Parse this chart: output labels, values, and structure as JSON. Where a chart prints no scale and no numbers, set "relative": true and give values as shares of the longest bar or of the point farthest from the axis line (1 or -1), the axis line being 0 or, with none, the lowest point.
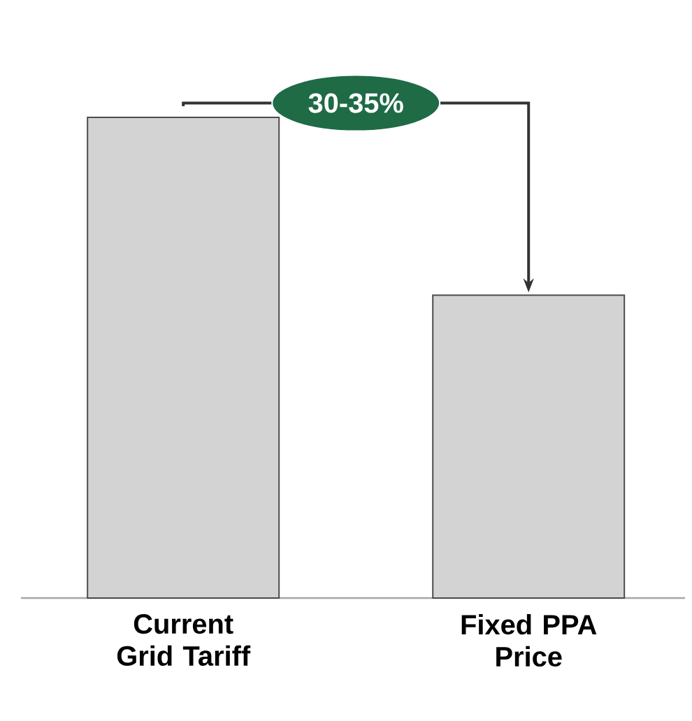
{
  "chart_data": {
    "type": "bar",
    "relative": true,
    "categories": [
      "Current Grid Tariff",
      "Fixed PPA Price"
    ],
    "values": [
      1,
      0.63
    ],
    "color": "#d3d3d3",
    "annotations": [
      "30-35%"
    ]
  }
}
